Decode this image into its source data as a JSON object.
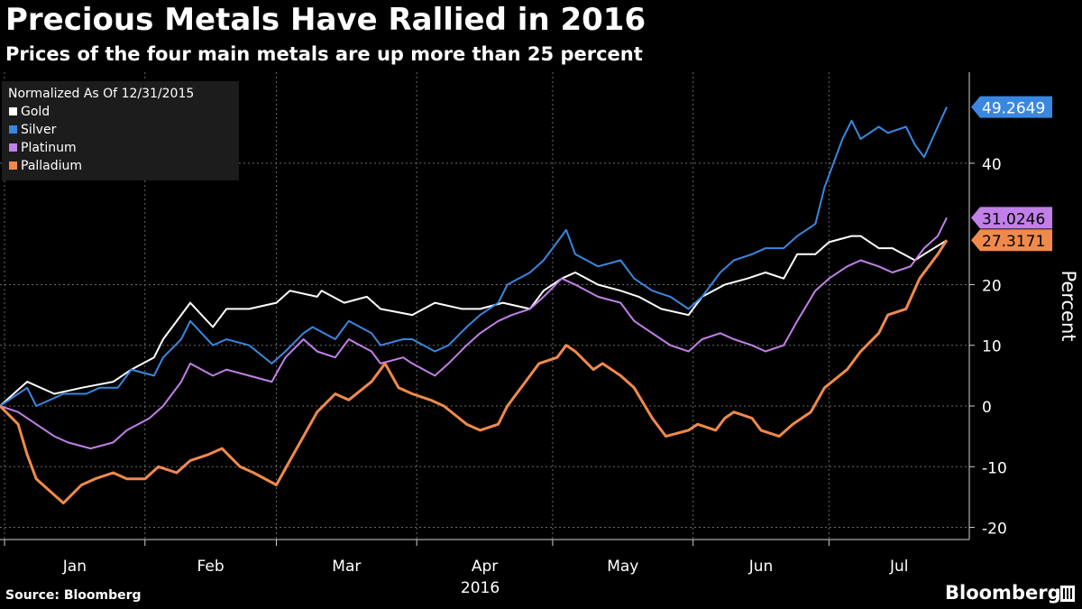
{
  "header": {
    "title": "Precious Metals Have Rallied in 2016",
    "subtitle": "Prices of the four main metals are up more than 25 percent"
  },
  "footer": {
    "source": "Source: Bloomberg",
    "brand": "Bloomberg"
  },
  "chart_data": {
    "type": "line",
    "legend_title": "Normalized As Of 12/31/2015",
    "legend_position": "top-left",
    "ylabel": "Percent",
    "xlabel": "2016",
    "ylim": [
      -22,
      55
    ],
    "yticks": [
      -20,
      -10,
      0,
      10,
      20,
      40
    ],
    "grid": true,
    "y_axis_side": "right",
    "months": [
      "Jan",
      "Feb",
      "Mar",
      "Apr",
      "May",
      "Jun",
      "Jul"
    ],
    "x_range": [
      "2015-12-31",
      "2016-07-27"
    ],
    "series": [
      {
        "name": "Gold",
        "color": "#ffffff",
        "last_value": "",
        "last_label_color": "",
        "points": [
          [
            "2015-12-31",
            0
          ],
          [
            "2016-01-06",
            4
          ],
          [
            "2016-01-12",
            2
          ],
          [
            "2016-01-18",
            3
          ],
          [
            "2016-01-25",
            4
          ],
          [
            "2016-01-29",
            6
          ],
          [
            "2016-02-03",
            8
          ],
          [
            "2016-02-05",
            11
          ],
          [
            "2016-02-09",
            15
          ],
          [
            "2016-02-11",
            17
          ],
          [
            "2016-02-16",
            13
          ],
          [
            "2016-02-19",
            16
          ],
          [
            "2016-02-24",
            16
          ],
          [
            "2016-03-01",
            17
          ],
          [
            "2016-03-04",
            19
          ],
          [
            "2016-03-10",
            18
          ],
          [
            "2016-03-11",
            19
          ],
          [
            "2016-03-16",
            17
          ],
          [
            "2016-03-21",
            18
          ],
          [
            "2016-03-24",
            16
          ],
          [
            "2016-03-31",
            15
          ],
          [
            "2016-04-05",
            17
          ],
          [
            "2016-04-11",
            16
          ],
          [
            "2016-04-15",
            16
          ],
          [
            "2016-04-20",
            17
          ],
          [
            "2016-04-26",
            16
          ],
          [
            "2016-04-29",
            19
          ],
          [
            "2016-05-03",
            21
          ],
          [
            "2016-05-06",
            22
          ],
          [
            "2016-05-11",
            20
          ],
          [
            "2016-05-16",
            19
          ],
          [
            "2016-05-20",
            18
          ],
          [
            "2016-05-25",
            16
          ],
          [
            "2016-05-31",
            15
          ],
          [
            "2016-06-03",
            18
          ],
          [
            "2016-06-08",
            20
          ],
          [
            "2016-06-13",
            21
          ],
          [
            "2016-06-17",
            22
          ],
          [
            "2016-06-21",
            21
          ],
          [
            "2016-06-24",
            25
          ],
          [
            "2016-06-28",
            25
          ],
          [
            "2016-07-01",
            27
          ],
          [
            "2016-07-06",
            28
          ],
          [
            "2016-07-08",
            28
          ],
          [
            "2016-07-12",
            26
          ],
          [
            "2016-07-15",
            26
          ],
          [
            "2016-07-20",
            24
          ],
          [
            "2016-07-22",
            25
          ],
          [
            "2016-07-27",
            27.3
          ]
        ]
      },
      {
        "name": "Silver",
        "color": "#3a87e0",
        "last_value": "49.2649",
        "last_label_color": "#3a87e0",
        "points": [
          [
            "2015-12-31",
            0
          ],
          [
            "2016-01-04",
            2
          ],
          [
            "2016-01-06",
            3
          ],
          [
            "2016-01-08",
            0
          ],
          [
            "2016-01-11",
            1
          ],
          [
            "2016-01-14",
            2
          ],
          [
            "2016-01-19",
            2
          ],
          [
            "2016-01-22",
            3
          ],
          [
            "2016-01-26",
            3
          ],
          [
            "2016-01-29",
            6
          ],
          [
            "2016-02-03",
            5
          ],
          [
            "2016-02-05",
            8
          ],
          [
            "2016-02-09",
            11
          ],
          [
            "2016-02-11",
            14
          ],
          [
            "2016-02-16",
            10
          ],
          [
            "2016-02-19",
            11
          ],
          [
            "2016-02-24",
            10
          ],
          [
            "2016-02-29",
            7
          ],
          [
            "2016-03-03",
            9
          ],
          [
            "2016-03-07",
            12
          ],
          [
            "2016-03-09",
            13
          ],
          [
            "2016-03-14",
            11
          ],
          [
            "2016-03-17",
            14
          ],
          [
            "2016-03-22",
            12
          ],
          [
            "2016-03-24",
            10
          ],
          [
            "2016-03-29",
            11
          ],
          [
            "2016-03-31",
            11
          ],
          [
            "2016-04-05",
            9
          ],
          [
            "2016-04-08",
            10
          ],
          [
            "2016-04-12",
            13
          ],
          [
            "2016-04-15",
            15
          ],
          [
            "2016-04-19",
            17
          ],
          [
            "2016-04-21",
            20
          ],
          [
            "2016-04-26",
            22
          ],
          [
            "2016-04-29",
            24
          ],
          [
            "2016-05-02",
            27
          ],
          [
            "2016-05-04",
            29
          ],
          [
            "2016-05-06",
            25
          ],
          [
            "2016-05-11",
            23
          ],
          [
            "2016-05-16",
            24
          ],
          [
            "2016-05-19",
            21
          ],
          [
            "2016-05-23",
            19
          ],
          [
            "2016-05-27",
            18
          ],
          [
            "2016-05-31",
            16
          ],
          [
            "2016-06-03",
            18
          ],
          [
            "2016-06-07",
            22
          ],
          [
            "2016-06-10",
            24
          ],
          [
            "2016-06-14",
            25
          ],
          [
            "2016-06-17",
            26
          ],
          [
            "2016-06-21",
            26
          ],
          [
            "2016-06-24",
            28
          ],
          [
            "2016-06-28",
            30
          ],
          [
            "2016-06-30",
            36
          ],
          [
            "2016-07-04",
            44
          ],
          [
            "2016-07-06",
            47
          ],
          [
            "2016-07-08",
            44
          ],
          [
            "2016-07-12",
            46
          ],
          [
            "2016-07-14",
            45
          ],
          [
            "2016-07-18",
            46
          ],
          [
            "2016-07-20",
            43
          ],
          [
            "2016-07-22",
            41
          ],
          [
            "2016-07-25",
            46
          ],
          [
            "2016-07-27",
            49.26
          ]
        ]
      },
      {
        "name": "Platinum",
        "color": "#c180e8",
        "last_value": "31.0246",
        "last_label_color": "#c180e8",
        "points": [
          [
            "2015-12-31",
            0
          ],
          [
            "2016-01-04",
            -1
          ],
          [
            "2016-01-08",
            -3
          ],
          [
            "2016-01-12",
            -5
          ],
          [
            "2016-01-15",
            -6
          ],
          [
            "2016-01-20",
            -7
          ],
          [
            "2016-01-25",
            -6
          ],
          [
            "2016-01-28",
            -4
          ],
          [
            "2016-02-02",
            -2
          ],
          [
            "2016-02-05",
            0
          ],
          [
            "2016-02-09",
            4
          ],
          [
            "2016-02-11",
            7
          ],
          [
            "2016-02-16",
            5
          ],
          [
            "2016-02-19",
            6
          ],
          [
            "2016-02-24",
            5
          ],
          [
            "2016-02-29",
            4
          ],
          [
            "2016-03-03",
            8
          ],
          [
            "2016-03-07",
            11
          ],
          [
            "2016-03-10",
            9
          ],
          [
            "2016-03-14",
            8
          ],
          [
            "2016-03-17",
            11
          ],
          [
            "2016-03-22",
            9
          ],
          [
            "2016-03-24",
            7
          ],
          [
            "2016-03-29",
            8
          ],
          [
            "2016-03-31",
            7
          ],
          [
            "2016-04-05",
            5
          ],
          [
            "2016-04-08",
            7
          ],
          [
            "2016-04-12",
            10
          ],
          [
            "2016-04-15",
            12
          ],
          [
            "2016-04-19",
            14
          ],
          [
            "2016-04-22",
            15
          ],
          [
            "2016-04-26",
            16
          ],
          [
            "2016-04-29",
            18
          ],
          [
            "2016-05-03",
            21
          ],
          [
            "2016-05-06",
            20
          ],
          [
            "2016-05-11",
            18
          ],
          [
            "2016-05-16",
            17
          ],
          [
            "2016-05-19",
            14
          ],
          [
            "2016-05-23",
            12
          ],
          [
            "2016-05-27",
            10
          ],
          [
            "2016-05-31",
            9
          ],
          [
            "2016-06-03",
            11
          ],
          [
            "2016-06-07",
            12
          ],
          [
            "2016-06-10",
            11
          ],
          [
            "2016-06-14",
            10
          ],
          [
            "2016-06-17",
            9
          ],
          [
            "2016-06-21",
            10
          ],
          [
            "2016-06-24",
            14
          ],
          [
            "2016-06-28",
            19
          ],
          [
            "2016-07-01",
            21
          ],
          [
            "2016-07-05",
            23
          ],
          [
            "2016-07-08",
            24
          ],
          [
            "2016-07-12",
            23
          ],
          [
            "2016-07-15",
            22
          ],
          [
            "2016-07-19",
            23
          ],
          [
            "2016-07-22",
            26
          ],
          [
            "2016-07-25",
            28
          ],
          [
            "2016-07-27",
            31.02
          ]
        ]
      },
      {
        "name": "Palladium",
        "color": "#f08a4b",
        "last_value": "27.3171",
        "last_label_color": "#f08a4b",
        "points": [
          [
            "2015-12-31",
            0
          ],
          [
            "2016-01-04",
            -3
          ],
          [
            "2016-01-06",
            -8
          ],
          [
            "2016-01-08",
            -12
          ],
          [
            "2016-01-11",
            -14
          ],
          [
            "2016-01-14",
            -16
          ],
          [
            "2016-01-18",
            -13
          ],
          [
            "2016-01-21",
            -12
          ],
          [
            "2016-01-25",
            -11
          ],
          [
            "2016-01-28",
            -12
          ],
          [
            "2016-02-01",
            -12
          ],
          [
            "2016-02-04",
            -10
          ],
          [
            "2016-02-08",
            -11
          ],
          [
            "2016-02-11",
            -9
          ],
          [
            "2016-02-15",
            -8
          ],
          [
            "2016-02-18",
            -7
          ],
          [
            "2016-02-22",
            -10
          ],
          [
            "2016-02-25",
            -11
          ],
          [
            "2016-03-01",
            -13
          ],
          [
            "2016-03-04",
            -9
          ],
          [
            "2016-03-07",
            -5
          ],
          [
            "2016-03-10",
            -1
          ],
          [
            "2016-03-14",
            2
          ],
          [
            "2016-03-17",
            1
          ],
          [
            "2016-03-22",
            4
          ],
          [
            "2016-03-25",
            7
          ],
          [
            "2016-03-28",
            3
          ],
          [
            "2016-03-31",
            2
          ],
          [
            "2016-04-04",
            1
          ],
          [
            "2016-04-07",
            0
          ],
          [
            "2016-04-12",
            -3
          ],
          [
            "2016-04-15",
            -4
          ],
          [
            "2016-04-19",
            -3
          ],
          [
            "2016-04-21",
            0
          ],
          [
            "2016-04-25",
            4
          ],
          [
            "2016-04-28",
            7
          ],
          [
            "2016-05-02",
            8
          ],
          [
            "2016-05-04",
            10
          ],
          [
            "2016-05-06",
            9
          ],
          [
            "2016-05-10",
            6
          ],
          [
            "2016-05-12",
            7
          ],
          [
            "2016-05-16",
            5
          ],
          [
            "2016-05-19",
            3
          ],
          [
            "2016-05-23",
            -2
          ],
          [
            "2016-05-26",
            -5
          ],
          [
            "2016-05-31",
            -4
          ],
          [
            "2016-06-02",
            -3
          ],
          [
            "2016-06-06",
            -4
          ],
          [
            "2016-06-08",
            -2
          ],
          [
            "2016-06-10",
            -1
          ],
          [
            "2016-06-14",
            -2
          ],
          [
            "2016-06-16",
            -4
          ],
          [
            "2016-06-20",
            -5
          ],
          [
            "2016-06-23",
            -3
          ],
          [
            "2016-06-27",
            -1
          ],
          [
            "2016-06-30",
            3
          ],
          [
            "2016-07-05",
            6
          ],
          [
            "2016-07-08",
            9
          ],
          [
            "2016-07-12",
            12
          ],
          [
            "2016-07-14",
            15
          ],
          [
            "2016-07-18",
            16
          ],
          [
            "2016-07-21",
            21
          ],
          [
            "2016-07-25",
            25
          ],
          [
            "2016-07-27",
            27.32
          ]
        ]
      }
    ]
  }
}
